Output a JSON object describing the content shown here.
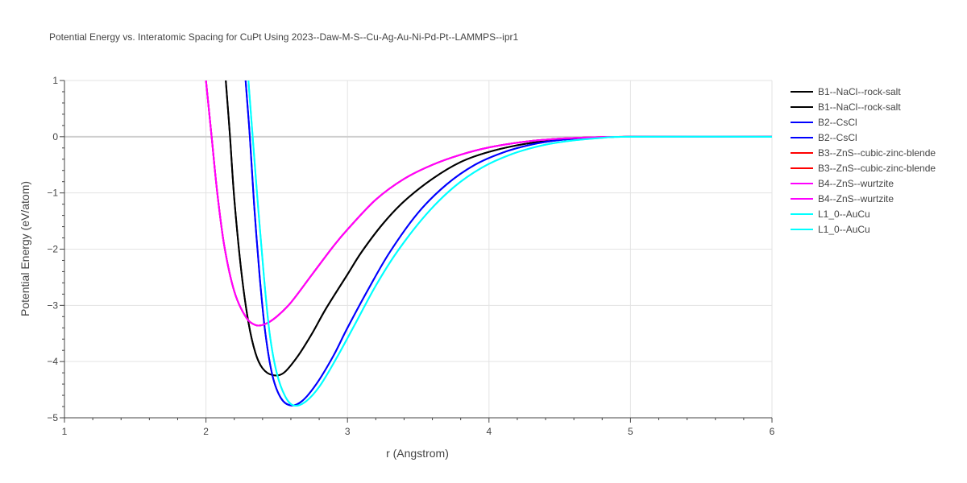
{
  "chart_data": {
    "type": "line",
    "title": "Potential Energy vs. Interatomic Spacing for CuPt Using 2023--Daw-M-S--Cu-Ag-Au-Ni-Pd-Pt--LAMMPS--ipr1",
    "xlabel": "r (Angstrom)",
    "ylabel": "Potential Energy (eV/atom)",
    "xlim": [
      1,
      6
    ],
    "ylim": [
      -5,
      1
    ],
    "x_ticks": [
      "1",
      "2",
      "3",
      "4",
      "5",
      "6"
    ],
    "y_ticks": [
      "1",
      "0",
      "−1",
      "−2",
      "−3",
      "−4",
      "−5"
    ],
    "grid": true,
    "legend_position": "right",
    "series": [
      {
        "name": "B1--NaCl--rock-salt",
        "color": "#000000",
        "points": [
          [
            2.14,
            1.0
          ],
          [
            2.17,
            0.0
          ],
          [
            2.2,
            -1.1
          ],
          [
            2.25,
            -2.4
          ],
          [
            2.3,
            -3.3
          ],
          [
            2.35,
            -3.85
          ],
          [
            2.4,
            -4.12
          ],
          [
            2.47,
            -4.24
          ],
          [
            2.55,
            -4.2
          ],
          [
            2.65,
            -3.9
          ],
          [
            2.75,
            -3.5
          ],
          [
            2.85,
            -3.05
          ],
          [
            3.0,
            -2.45
          ],
          [
            3.1,
            -2.05
          ],
          [
            3.25,
            -1.55
          ],
          [
            3.4,
            -1.15
          ],
          [
            3.6,
            -0.75
          ],
          [
            3.8,
            -0.45
          ],
          [
            4.0,
            -0.27
          ],
          [
            4.25,
            -0.13
          ],
          [
            4.5,
            -0.055
          ],
          [
            4.75,
            -0.015
          ],
          [
            5.0,
            0.0
          ],
          [
            6.0,
            0.0
          ]
        ]
      },
      {
        "name": "B1--NaCl--rock-salt",
        "color": "#000000",
        "points": [
          [
            2.14,
            1.0
          ],
          [
            2.17,
            0.0
          ],
          [
            2.2,
            -1.1
          ],
          [
            2.25,
            -2.4
          ],
          [
            2.3,
            -3.3
          ],
          [
            2.35,
            -3.85
          ],
          [
            2.4,
            -4.12
          ],
          [
            2.47,
            -4.24
          ],
          [
            2.55,
            -4.2
          ],
          [
            2.65,
            -3.9
          ],
          [
            2.75,
            -3.5
          ],
          [
            2.85,
            -3.05
          ],
          [
            3.0,
            -2.45
          ],
          [
            3.1,
            -2.05
          ],
          [
            3.25,
            -1.55
          ],
          [
            3.4,
            -1.15
          ],
          [
            3.6,
            -0.75
          ],
          [
            3.8,
            -0.45
          ],
          [
            4.0,
            -0.27
          ],
          [
            4.25,
            -0.13
          ],
          [
            4.5,
            -0.055
          ],
          [
            4.75,
            -0.015
          ],
          [
            5.0,
            0.0
          ],
          [
            6.0,
            0.0
          ]
        ]
      },
      {
        "name": "B2--CsCl",
        "color": "#0000ff",
        "points": [
          [
            2.28,
            1.0
          ],
          [
            2.31,
            0.0
          ],
          [
            2.34,
            -1.2
          ],
          [
            2.38,
            -2.5
          ],
          [
            2.42,
            -3.5
          ],
          [
            2.47,
            -4.25
          ],
          [
            2.53,
            -4.65
          ],
          [
            2.6,
            -4.78
          ],
          [
            2.68,
            -4.7
          ],
          [
            2.78,
            -4.4
          ],
          [
            2.9,
            -3.9
          ],
          [
            3.0,
            -3.4
          ],
          [
            3.15,
            -2.7
          ],
          [
            3.3,
            -2.05
          ],
          [
            3.5,
            -1.35
          ],
          [
            3.7,
            -0.85
          ],
          [
            3.9,
            -0.5
          ],
          [
            4.1,
            -0.28
          ],
          [
            4.3,
            -0.14
          ],
          [
            4.5,
            -0.06
          ],
          [
            4.75,
            -0.015
          ],
          [
            5.0,
            0.0
          ],
          [
            6.0,
            0.0
          ]
        ]
      },
      {
        "name": "B2--CsCl",
        "color": "#0000ff",
        "points": [
          [
            2.28,
            1.0
          ],
          [
            2.31,
            0.0
          ],
          [
            2.34,
            -1.2
          ],
          [
            2.38,
            -2.5
          ],
          [
            2.42,
            -3.5
          ],
          [
            2.47,
            -4.25
          ],
          [
            2.53,
            -4.65
          ],
          [
            2.6,
            -4.78
          ],
          [
            2.68,
            -4.7
          ],
          [
            2.78,
            -4.4
          ],
          [
            2.9,
            -3.9
          ],
          [
            3.0,
            -3.4
          ],
          [
            3.15,
            -2.7
          ],
          [
            3.3,
            -2.05
          ],
          [
            3.5,
            -1.35
          ],
          [
            3.7,
            -0.85
          ],
          [
            3.9,
            -0.5
          ],
          [
            4.1,
            -0.28
          ],
          [
            4.3,
            -0.14
          ],
          [
            4.5,
            -0.06
          ],
          [
            4.75,
            -0.015
          ],
          [
            5.0,
            0.0
          ],
          [
            6.0,
            0.0
          ]
        ]
      },
      {
        "name": "B3--ZnS--cubic-zinc-blende",
        "color": "#ff0000",
        "points": [
          [
            2.0,
            1.0
          ],
          [
            2.04,
            0.0
          ],
          [
            2.08,
            -1.0
          ],
          [
            2.13,
            -1.95
          ],
          [
            2.2,
            -2.75
          ],
          [
            2.28,
            -3.2
          ],
          [
            2.35,
            -3.35
          ],
          [
            2.42,
            -3.33
          ],
          [
            2.5,
            -3.2
          ],
          [
            2.6,
            -2.95
          ],
          [
            2.75,
            -2.45
          ],
          [
            2.9,
            -1.95
          ],
          [
            3.0,
            -1.65
          ],
          [
            3.2,
            -1.12
          ],
          [
            3.4,
            -0.75
          ],
          [
            3.6,
            -0.5
          ],
          [
            3.8,
            -0.32
          ],
          [
            4.0,
            -0.19
          ],
          [
            4.25,
            -0.09
          ],
          [
            4.5,
            -0.035
          ],
          [
            4.75,
            -0.01
          ],
          [
            5.0,
            0.0
          ],
          [
            6.0,
            0.0
          ]
        ]
      },
      {
        "name": "B3--ZnS--cubic-zinc-blende",
        "color": "#ff0000",
        "points": [
          [
            2.0,
            1.0
          ],
          [
            2.04,
            0.0
          ],
          [
            2.08,
            -1.0
          ],
          [
            2.13,
            -1.95
          ],
          [
            2.2,
            -2.75
          ],
          [
            2.28,
            -3.2
          ],
          [
            2.35,
            -3.35
          ],
          [
            2.42,
            -3.33
          ],
          [
            2.5,
            -3.2
          ],
          [
            2.6,
            -2.95
          ],
          [
            2.75,
            -2.45
          ],
          [
            2.9,
            -1.95
          ],
          [
            3.0,
            -1.65
          ],
          [
            3.2,
            -1.12
          ],
          [
            3.4,
            -0.75
          ],
          [
            3.6,
            -0.5
          ],
          [
            3.8,
            -0.32
          ],
          [
            4.0,
            -0.19
          ],
          [
            4.25,
            -0.09
          ],
          [
            4.5,
            -0.035
          ],
          [
            4.75,
            -0.01
          ],
          [
            5.0,
            0.0
          ],
          [
            6.0,
            0.0
          ]
        ]
      },
      {
        "name": "B4--ZnS--wurtzite",
        "color": "#ff00ff",
        "points": [
          [
            2.0,
            1.0
          ],
          [
            2.04,
            0.0
          ],
          [
            2.08,
            -1.0
          ],
          [
            2.13,
            -1.95
          ],
          [
            2.2,
            -2.75
          ],
          [
            2.28,
            -3.2
          ],
          [
            2.35,
            -3.35
          ],
          [
            2.42,
            -3.33
          ],
          [
            2.5,
            -3.2
          ],
          [
            2.6,
            -2.95
          ],
          [
            2.75,
            -2.45
          ],
          [
            2.9,
            -1.95
          ],
          [
            3.0,
            -1.65
          ],
          [
            3.2,
            -1.12
          ],
          [
            3.4,
            -0.75
          ],
          [
            3.6,
            -0.5
          ],
          [
            3.8,
            -0.32
          ],
          [
            4.0,
            -0.19
          ],
          [
            4.25,
            -0.09
          ],
          [
            4.5,
            -0.035
          ],
          [
            4.75,
            -0.01
          ],
          [
            5.0,
            0.0
          ],
          [
            6.0,
            0.0
          ]
        ]
      },
      {
        "name": "B4--ZnS--wurtzite",
        "color": "#ff00ff",
        "points": [
          [
            2.0,
            1.0
          ],
          [
            2.04,
            0.0
          ],
          [
            2.08,
            -1.0
          ],
          [
            2.13,
            -1.95
          ],
          [
            2.2,
            -2.75
          ],
          [
            2.28,
            -3.2
          ],
          [
            2.35,
            -3.35
          ],
          [
            2.42,
            -3.33
          ],
          [
            2.5,
            -3.2
          ],
          [
            2.6,
            -2.95
          ],
          [
            2.75,
            -2.45
          ],
          [
            2.9,
            -1.95
          ],
          [
            3.0,
            -1.65
          ],
          [
            3.2,
            -1.12
          ],
          [
            3.4,
            -0.75
          ],
          [
            3.6,
            -0.5
          ],
          [
            3.8,
            -0.32
          ],
          [
            4.0,
            -0.19
          ],
          [
            4.25,
            -0.09
          ],
          [
            4.5,
            -0.035
          ],
          [
            4.75,
            -0.01
          ],
          [
            5.0,
            0.0
          ],
          [
            6.0,
            0.0
          ]
        ]
      },
      {
        "name": "L1_0--AuCu",
        "color": "#00ffff",
        "points": [
          [
            2.3,
            1.0
          ],
          [
            2.33,
            0.0
          ],
          [
            2.37,
            -1.3
          ],
          [
            2.41,
            -2.5
          ],
          [
            2.45,
            -3.5
          ],
          [
            2.5,
            -4.2
          ],
          [
            2.56,
            -4.62
          ],
          [
            2.62,
            -4.78
          ],
          [
            2.7,
            -4.72
          ],
          [
            2.8,
            -4.45
          ],
          [
            2.92,
            -3.95
          ],
          [
            3.05,
            -3.35
          ],
          [
            3.2,
            -2.65
          ],
          [
            3.35,
            -2.05
          ],
          [
            3.55,
            -1.4
          ],
          [
            3.75,
            -0.9
          ],
          [
            3.95,
            -0.55
          ],
          [
            4.15,
            -0.32
          ],
          [
            4.35,
            -0.17
          ],
          [
            4.55,
            -0.08
          ],
          [
            4.8,
            -0.02
          ],
          [
            5.0,
            0.0
          ],
          [
            6.0,
            0.0
          ]
        ]
      },
      {
        "name": "L1_0--AuCu",
        "color": "#00ffff",
        "points": [
          [
            2.3,
            1.0
          ],
          [
            2.33,
            0.0
          ],
          [
            2.37,
            -1.3
          ],
          [
            2.41,
            -2.5
          ],
          [
            2.45,
            -3.5
          ],
          [
            2.5,
            -4.2
          ],
          [
            2.56,
            -4.62
          ],
          [
            2.62,
            -4.78
          ],
          [
            2.7,
            -4.72
          ],
          [
            2.8,
            -4.45
          ],
          [
            2.92,
            -3.95
          ],
          [
            3.05,
            -3.35
          ],
          [
            3.2,
            -2.65
          ],
          [
            3.35,
            -2.05
          ],
          [
            3.55,
            -1.4
          ],
          [
            3.75,
            -0.9
          ],
          [
            3.95,
            -0.55
          ],
          [
            4.15,
            -0.32
          ],
          [
            4.35,
            -0.17
          ],
          [
            4.55,
            -0.08
          ],
          [
            4.8,
            -0.02
          ],
          [
            5.0,
            0.0
          ],
          [
            6.0,
            0.0
          ]
        ]
      }
    ]
  }
}
